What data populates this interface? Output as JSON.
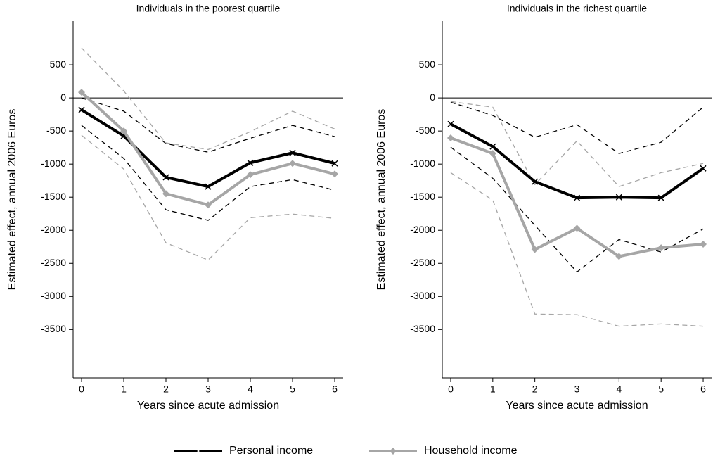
{
  "chart_data": [
    {
      "type": "line",
      "title": "Individuals in the poorest quartile",
      "xlabel": "Years since acute admission",
      "ylabel": "Estimated effect, annual 2006 Euros",
      "x": [
        0,
        1,
        2,
        3,
        4,
        5,
        6
      ],
      "xlim": [
        -0.2,
        6.2
      ],
      "ylim": [
        -4230,
        1160
      ],
      "xticks": [
        0,
        1,
        2,
        3,
        4,
        5,
        6
      ],
      "yticks": [
        500,
        0,
        -500,
        -1000,
        -1500,
        -2000,
        -2500,
        -3000,
        -3500
      ],
      "hline": 0,
      "series": [
        {
          "name": "Personal income",
          "color": "#000000",
          "width": 4,
          "marker": "x",
          "values": [
            -180,
            -575,
            -1200,
            -1340,
            -980,
            -830,
            -990
          ]
        },
        {
          "name": "Household income",
          "color": "#a6a6a6",
          "width": 4,
          "marker": "diamond",
          "values": [
            85,
            -500,
            -1447,
            -1617,
            -1160,
            -990,
            -1150
          ]
        },
        {
          "color": "#000000",
          "dash": true,
          "values": [
            0,
            -200,
            -690,
            -820,
            -610,
            -415,
            -585
          ]
        },
        {
          "color": "#000000",
          "dash": true,
          "values": [
            -415,
            -915,
            -1690,
            -1850,
            -1340,
            -1235,
            -1395
          ]
        },
        {
          "color": "#a6a6a6",
          "dash": true,
          "values": [
            755,
            105,
            -680,
            -780,
            -510,
            -200,
            -470
          ]
        },
        {
          "color": "#a6a6a6",
          "dash": true,
          "values": [
            -565,
            -1075,
            -2190,
            -2450,
            -1810,
            -1755,
            -1820
          ]
        }
      ]
    },
    {
      "type": "line",
      "title": "Individuals in the richest quartile",
      "xlabel": "Years since acute admission",
      "ylabel": "Estimated effect, annual 2006 Euros",
      "x": [
        0,
        1,
        2,
        3,
        4,
        5,
        6
      ],
      "xlim": [
        -0.2,
        6.2
      ],
      "ylim": [
        -4230,
        1160
      ],
      "xticks": [
        0,
        1,
        2,
        3,
        4,
        5,
        6
      ],
      "yticks": [
        500,
        0,
        -500,
        -1000,
        -1500,
        -2000,
        -2500,
        -3000,
        -3500
      ],
      "hline": 0,
      "series": [
        {
          "name": "Personal income",
          "color": "#000000",
          "width": 4,
          "marker": "x",
          "values": [
            -395,
            -735,
            -1265,
            -1510,
            -1500,
            -1510,
            -1065
          ]
        },
        {
          "name": "Household income",
          "color": "#a6a6a6",
          "width": 4,
          "marker": "diamond",
          "values": [
            -605,
            -840,
            -2290,
            -1970,
            -2395,
            -2265,
            -2210
          ]
        },
        {
          "color": "#000000",
          "dash": true,
          "values": [
            -65,
            -265,
            -595,
            -405,
            -840,
            -670,
            -140
          ]
        },
        {
          "color": "#000000",
          "dash": true,
          "values": [
            -745,
            -1215,
            -1925,
            -2630,
            -2140,
            -2330,
            -1980
          ]
        },
        {
          "color": "#a6a6a6",
          "dash": true,
          "values": [
            -55,
            -140,
            -1310,
            -650,
            -1340,
            -1130,
            -990
          ]
        },
        {
          "color": "#a6a6a6",
          "dash": true,
          "values": [
            -1130,
            -1545,
            -3265,
            -3275,
            -3450,
            -3415,
            -3450
          ]
        }
      ]
    }
  ]
}
